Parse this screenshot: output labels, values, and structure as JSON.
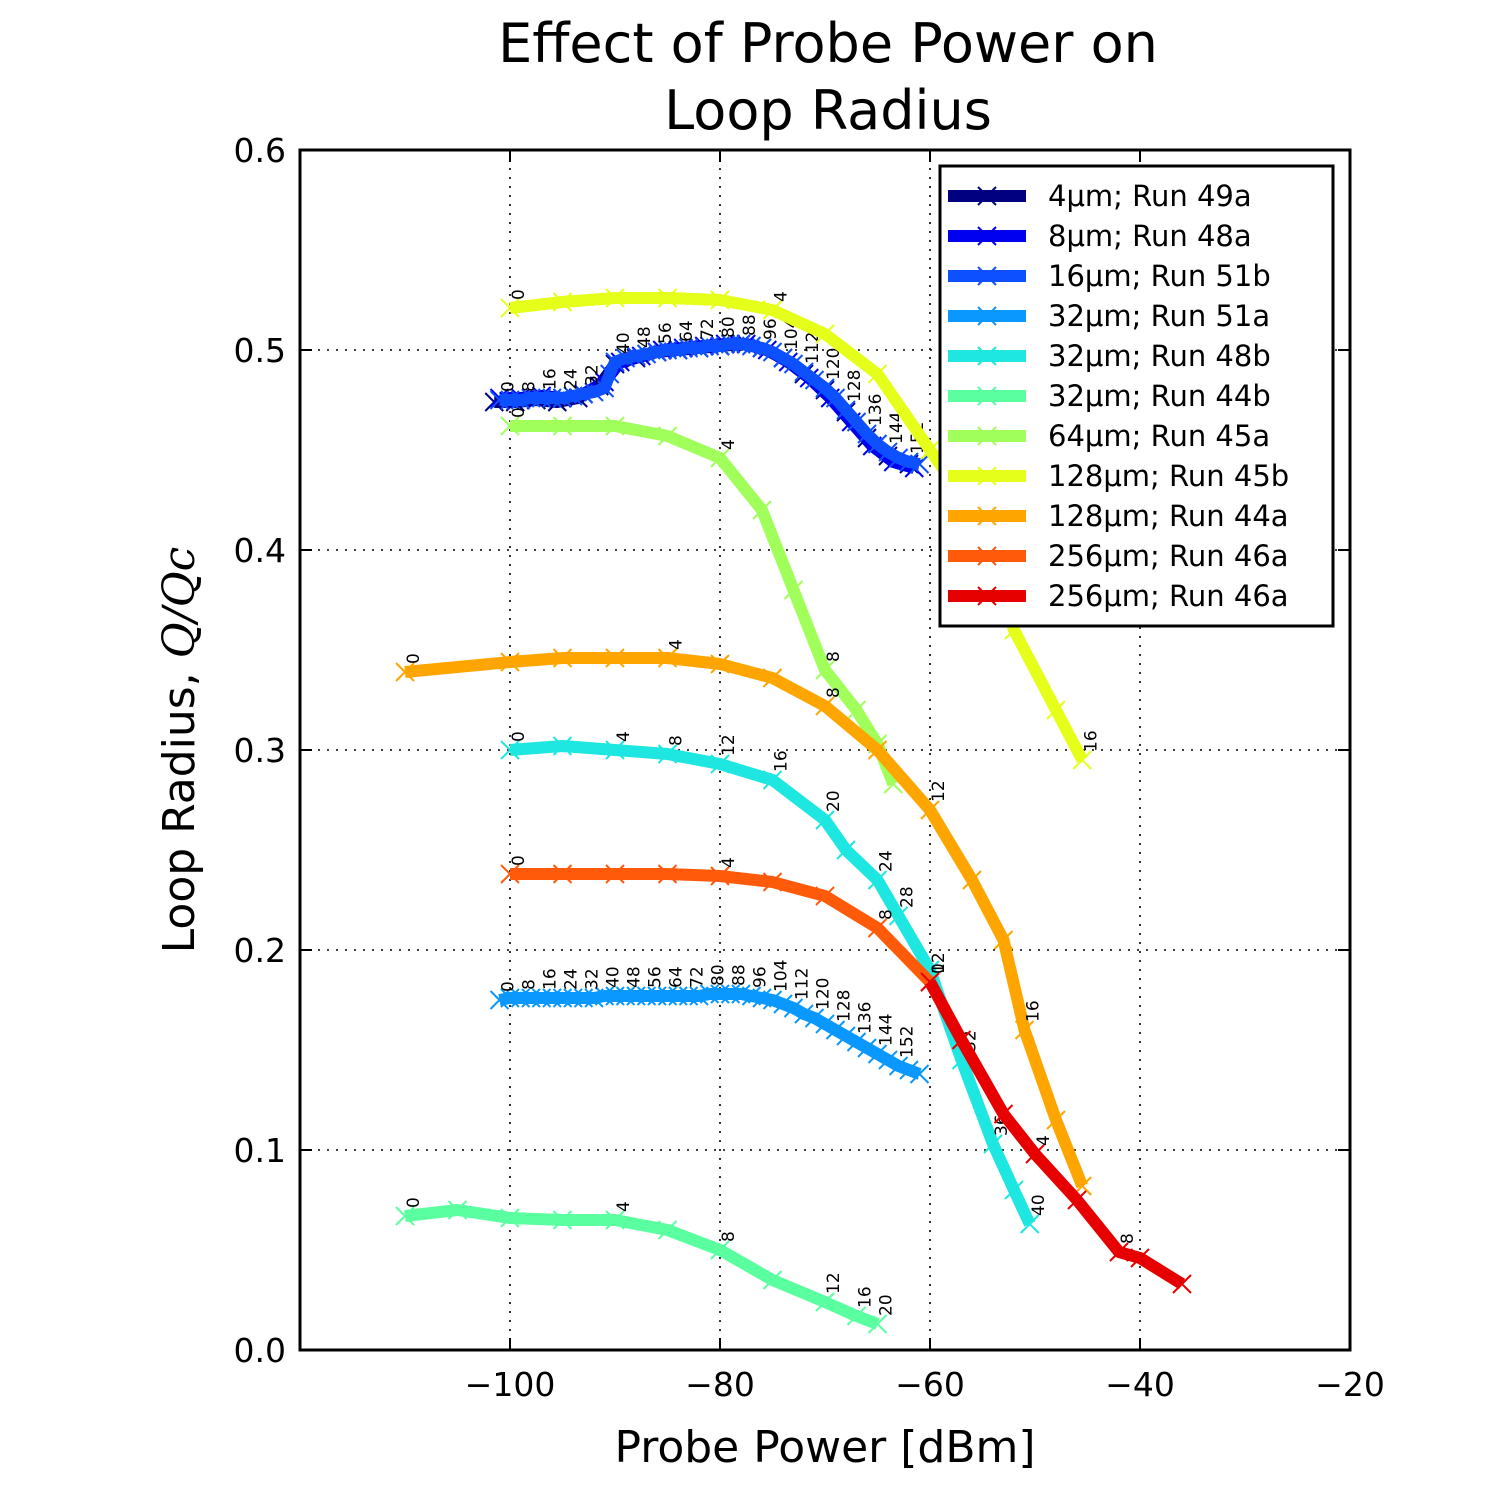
{
  "chart_data": {
    "type": "line",
    "title": [
      "Effect of Probe Power on",
      "Loop Radius"
    ],
    "xlabel": "Probe Power [dBm]",
    "ylabel_text": "Loop Radius, ",
    "ylabel_math": "Q/Qc",
    "xlim": [
      -120,
      -20
    ],
    "ylim": [
      0.0,
      0.6
    ],
    "xticks": [
      -100,
      -80,
      -60,
      -40,
      -20
    ],
    "xtick_labels": [
      "−100",
      "−80",
      "−60",
      "−40",
      "−20"
    ],
    "yticks": [
      0.0,
      0.1,
      0.2,
      0.3,
      0.4,
      0.5,
      0.6
    ],
    "ytick_labels": [
      "0.0",
      "0.1",
      "0.2",
      "0.3",
      "0.4",
      "0.5",
      "0.6"
    ],
    "grid": true,
    "legend_position": "top-right",
    "series": [
      {
        "name": "4μm; Run 49a",
        "color": "#000080",
        "x": [
          -101.5,
          -99.5,
          -97.5,
          -95.5,
          -93.5,
          -91.5,
          -90,
          -88,
          -86,
          -84,
          -82,
          -80,
          -78,
          -76,
          -74,
          -72,
          -70,
          -68,
          -66,
          -64,
          -62
        ],
        "y": [
          0.474,
          0.474,
          0.475,
          0.474,
          0.476,
          0.482,
          0.493,
          0.496,
          0.499,
          0.5,
          0.501,
          0.502,
          0.503,
          0.501,
          0.496,
          0.488,
          0.48,
          0.469,
          0.456,
          0.447,
          0.443
        ],
        "annotations": [],
        "step": 0
      },
      {
        "name": "8μm; Run 48a",
        "color": "#0000F0",
        "x": [
          -101,
          -99,
          -97,
          -95,
          -93,
          -91,
          -89.5,
          -87.5,
          -85.5,
          -83.5,
          -81.5,
          -79.5,
          -77.5,
          -75.5,
          -73.5,
          -71.5,
          -69.5,
          -67.5,
          -65.5,
          -63.5,
          -61.5
        ],
        "y": [
          0.476,
          0.476,
          0.477,
          0.476,
          0.478,
          0.484,
          0.494,
          0.497,
          0.5,
          0.501,
          0.502,
          0.503,
          0.503,
          0.5,
          0.494,
          0.486,
          0.476,
          0.464,
          0.452,
          0.444,
          0.441
        ],
        "annotations": [],
        "step": 0
      },
      {
        "name": "16μm; Run 51b",
        "color": "#0D50FF",
        "x": [
          -101,
          -100,
          -99,
          -98,
          -97,
          -96,
          -95,
          -94,
          -93,
          -92,
          -91,
          -90.5,
          -90,
          -89,
          -88,
          -87,
          -86,
          -85,
          -84,
          -83,
          -82,
          -81,
          -80,
          -79,
          -78,
          -77,
          -76,
          -75,
          -74,
          -73,
          -72,
          -71,
          -70,
          -69,
          -68,
          -67,
          -66,
          -65,
          -64,
          -63,
          -62,
          -61
        ],
        "y": [
          0.475,
          0.475,
          0.475,
          0.476,
          0.476,
          0.476,
          0.476,
          0.477,
          0.478,
          0.479,
          0.481,
          0.488,
          0.494,
          0.496,
          0.497,
          0.498,
          0.499,
          0.5,
          0.5,
          0.501,
          0.501,
          0.502,
          0.502,
          0.503,
          0.503,
          0.502,
          0.501,
          0.499,
          0.496,
          0.493,
          0.489,
          0.485,
          0.481,
          0.476,
          0.47,
          0.464,
          0.458,
          0.453,
          0.449,
          0.446,
          0.444,
          0.443
        ],
        "annotations": [
          [
            "0",
            0
          ],
          [
            "8",
            2
          ],
          [
            "16",
            4
          ],
          [
            "24",
            6
          ],
          [
            "32",
            8
          ],
          [
            "40",
            12
          ],
          [
            "48",
            14
          ],
          [
            "56",
            16
          ],
          [
            "64",
            18
          ],
          [
            "72",
            20
          ],
          [
            "80",
            22
          ],
          [
            "88",
            24
          ],
          [
            "96",
            26
          ],
          [
            "104",
            28
          ],
          [
            "112",
            30
          ],
          [
            "120",
            32
          ],
          [
            "128",
            34
          ],
          [
            "136",
            36
          ],
          [
            "144",
            38
          ],
          [
            "152",
            40
          ]
        ],
        "step": 1
      },
      {
        "name": "32μm; Run 51a",
        "color": "#0A98FF",
        "x": [
          -101,
          -100,
          -99,
          -98,
          -97,
          -96,
          -95,
          -94,
          -93,
          -92,
          -91,
          -90,
          -89,
          -88,
          -87,
          -86,
          -85,
          -84,
          -83,
          -82,
          -81,
          -80,
          -79,
          -78,
          -77,
          -76,
          -75,
          -74,
          -73,
          -72,
          -71,
          -70,
          -69,
          -68,
          -67,
          -66,
          -65,
          -64,
          -63,
          -62,
          -61
        ],
        "y": [
          0.175,
          0.176,
          0.176,
          0.176,
          0.176,
          0.176,
          0.176,
          0.176,
          0.176,
          0.176,
          0.177,
          0.177,
          0.177,
          0.177,
          0.177,
          0.177,
          0.177,
          0.177,
          0.177,
          0.177,
          0.178,
          0.178,
          0.178,
          0.178,
          0.177,
          0.176,
          0.175,
          0.173,
          0.171,
          0.168,
          0.166,
          0.163,
          0.16,
          0.157,
          0.154,
          0.151,
          0.148,
          0.145,
          0.142,
          0.14,
          0.138
        ],
        "annotations": [
          [
            "0",
            0
          ],
          [
            "8",
            2
          ],
          [
            "16",
            4
          ],
          [
            "24",
            6
          ],
          [
            "32",
            8
          ],
          [
            "40",
            10
          ],
          [
            "48",
            12
          ],
          [
            "56",
            14
          ],
          [
            "64",
            16
          ],
          [
            "72",
            18
          ],
          [
            "80",
            20
          ],
          [
            "88",
            22
          ],
          [
            "96",
            24
          ],
          [
            "104",
            26
          ],
          [
            "112",
            28
          ],
          [
            "120",
            30
          ],
          [
            "128",
            32
          ],
          [
            "136",
            34
          ],
          [
            "144",
            36
          ],
          [
            "152",
            38
          ]
        ],
        "step": 1
      },
      {
        "name": "32μm; Run 48b",
        "color": "#1DE7E0",
        "x": [
          -100,
          -95,
          -90,
          -85,
          -80,
          -75,
          -70,
          -68,
          -65,
          -63,
          -60,
          -57,
          -54,
          -52,
          -50.5
        ],
        "y": [
          0.3,
          0.302,
          0.3,
          0.298,
          0.293,
          0.285,
          0.265,
          0.25,
          0.235,
          0.217,
          0.19,
          0.145,
          0.103,
          0.08,
          0.063
        ],
        "annotations": [
          [
            "0",
            0
          ],
          [
            "4",
            2
          ],
          [
            "8",
            3
          ],
          [
            "12",
            4
          ],
          [
            "16",
            5
          ],
          [
            "20",
            6
          ],
          [
            "24",
            8
          ],
          [
            "28",
            9
          ],
          [
            "32",
            11
          ],
          [
            "36",
            12
          ],
          [
            "40",
            14
          ]
        ],
        "step": 1
      },
      {
        "name": "32μm; Run 44b",
        "color": "#5AFFA0",
        "x": [
          -110,
          -105,
          -100,
          -95,
          -90,
          -85,
          -80,
          -75,
          -70,
          -67,
          -65
        ],
        "y": [
          0.067,
          0.07,
          0.066,
          0.065,
          0.065,
          0.06,
          0.05,
          0.035,
          0.024,
          0.017,
          0.013
        ],
        "annotations": [
          [
            "0",
            0
          ],
          [
            "4",
            4
          ],
          [
            "8",
            6
          ],
          [
            "12",
            8
          ],
          [
            "16",
            9
          ],
          [
            "20",
            10
          ]
        ],
        "step": 1
      },
      {
        "name": "64μm; Run 45a",
        "color": "#A0FF5A",
        "x": [
          -100,
          -95,
          -90,
          -85,
          -80,
          -76,
          -73,
          -70,
          -67,
          -65,
          -63.5
        ],
        "y": [
          0.462,
          0.462,
          0.462,
          0.457,
          0.446,
          0.42,
          0.38,
          0.34,
          0.32,
          0.303,
          0.283
        ],
        "annotations": [
          [
            "0",
            0
          ],
          [
            "4",
            4
          ],
          [
            "8",
            7
          ]
        ],
        "step": 1
      },
      {
        "name": "128μm; Run 45b",
        "color": "#E6FF1A",
        "x": [
          -100,
          -95,
          -90,
          -85,
          -80,
          -75,
          -70,
          -65,
          -60,
          -56,
          -52,
          -48,
          -45.5
        ],
        "y": [
          0.521,
          0.524,
          0.526,
          0.526,
          0.525,
          0.52,
          0.508,
          0.488,
          0.45,
          0.42,
          0.36,
          0.32,
          0.295
        ],
        "annotations": [
          [
            "0",
            0
          ],
          [
            "4",
            5
          ],
          [
            "16",
            12
          ]
        ],
        "step": 1
      },
      {
        "name": "128μm; Run 44a",
        "color": "#FFA500",
        "x": [
          -110,
          -100,
          -95,
          -90,
          -85,
          -80,
          -75,
          -70,
          -65,
          -60,
          -56,
          -53,
          -51,
          -48,
          -45.5
        ],
        "y": [
          0.339,
          0.344,
          0.346,
          0.346,
          0.346,
          0.343,
          0.336,
          0.322,
          0.3,
          0.27,
          0.235,
          0.205,
          0.16,
          0.115,
          0.082
        ],
        "annotations": [
          [
            "0",
            0
          ],
          [
            "4",
            4
          ],
          [
            "8",
            7
          ],
          [
            "12",
            9
          ],
          [
            "16",
            12
          ]
        ],
        "step": 1
      },
      {
        "name": "256μm; Run 46a",
        "color": "#FF5A0A",
        "x": [
          -100,
          -95,
          -90,
          -85,
          -80,
          -75,
          -70,
          -65,
          -60
        ],
        "y": [
          0.238,
          0.238,
          0.238,
          0.238,
          0.237,
          0.234,
          0.227,
          0.211,
          0.184
        ],
        "annotations": [
          [
            "0",
            0
          ],
          [
            "4",
            4
          ],
          [
            "8",
            7
          ],
          [
            "12",
            8
          ]
        ],
        "step": 1
      },
      {
        "name": "256μm; Run 46a",
        "color": "#E60000",
        "x": [
          -60,
          -57,
          -53,
          -50,
          -46,
          -42,
          -40,
          -36
        ],
        "y": [
          0.184,
          0.155,
          0.118,
          0.098,
          0.075,
          0.049,
          0.046,
          0.033
        ],
        "annotations": [
          [
            "0",
            0
          ],
          [
            "4",
            3
          ],
          [
            "8",
            5
          ]
        ],
        "step": 1
      }
    ]
  }
}
